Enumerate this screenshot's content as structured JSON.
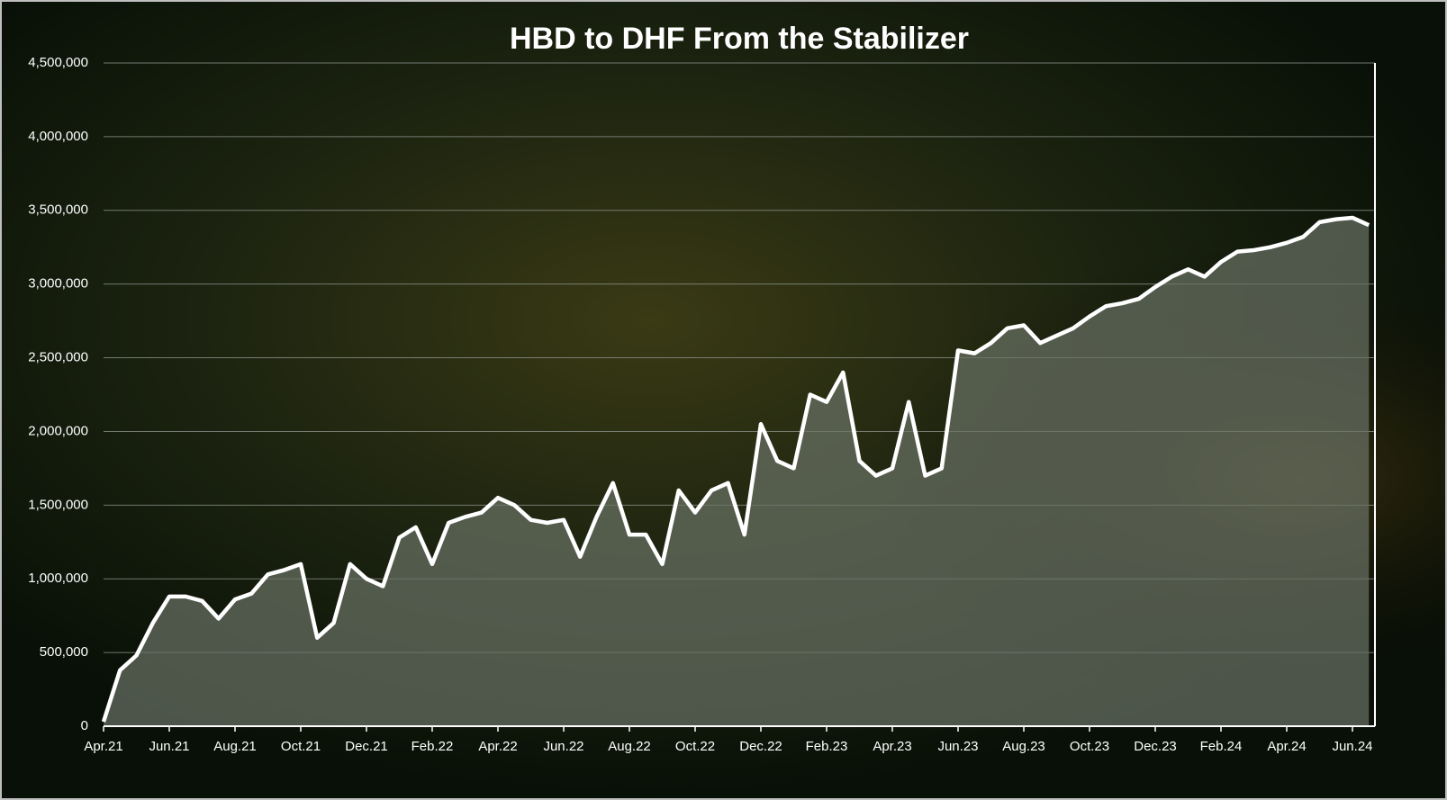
{
  "chart_data": {
    "type": "area",
    "title": "HBD to DHF From the Stabilizer",
    "categories": [
      "Apr.21",
      null,
      null,
      null,
      "Jun.21",
      null,
      null,
      null,
      "Aug.21",
      null,
      null,
      null,
      "Oct.21",
      null,
      null,
      null,
      "Dec.21",
      null,
      null,
      null,
      "Feb.22",
      null,
      null,
      null,
      "Apr.22",
      null,
      null,
      null,
      "Jun.22",
      null,
      null,
      null,
      "Aug.22",
      null,
      null,
      null,
      "Oct.22",
      null,
      null,
      null,
      "Dec.22",
      null,
      null,
      null,
      "Feb.23",
      null,
      null,
      null,
      "Apr.23",
      null,
      null,
      null,
      "Jun.23",
      null,
      null,
      null,
      "Aug.23",
      null,
      null,
      null,
      "Oct.23",
      null,
      null,
      null,
      "Dec.23",
      null,
      null,
      null,
      "Feb.24",
      null,
      null,
      null,
      "Apr.24",
      null,
      null,
      null,
      "Jun.24",
      null
    ],
    "values": [
      30000,
      380000,
      480000,
      700000,
      880000,
      880000,
      850000,
      730000,
      860000,
      900000,
      1030000,
      1060000,
      1100000,
      600000,
      700000,
      1100000,
      1000000,
      950000,
      1280000,
      1350000,
      1100000,
      1380000,
      1420000,
      1450000,
      1550000,
      1500000,
      1400000,
      1380000,
      1400000,
      1150000,
      1420000,
      1650000,
      1300000,
      1300000,
      1100000,
      1600000,
      1450000,
      1600000,
      1650000,
      1300000,
      2050000,
      1800000,
      1750000,
      2250000,
      2200000,
      2400000,
      1800000,
      1700000,
      1750000,
      2200000,
      1700000,
      1750000,
      2550000,
      2530000,
      2600000,
      2700000,
      2720000,
      2600000,
      2650000,
      2700000,
      2780000,
      2850000,
      2870000,
      2900000,
      2980000,
      3050000,
      3100000,
      3050000,
      3150000,
      3220000,
      3230000,
      3250000,
      3280000,
      3320000,
      3420000,
      3440000,
      3450000,
      3400000
    ],
    "line_color": "#ffffff",
    "fill_color": "#6b7467",
    "ylim": [
      0,
      4500000
    ],
    "yticks": [
      0,
      {
        "value": 500000,
        "label": "500,000"
      },
      {
        "value": 1000000,
        "label": "1,000,000"
      },
      {
        "value": 1500000,
        "label": "1,500,000"
      },
      {
        "value": 2000000,
        "label": "2,000,000"
      },
      {
        "value": 2500000,
        "label": "2,500,000"
      },
      {
        "value": 3000000,
        "label": "3,000,000"
      },
      {
        "value": 3500000,
        "label": "3,500,000"
      },
      {
        "value": 4000000,
        "label": "4,000,000"
      },
      {
        "value": 4500000,
        "label": "4,500,000"
      }
    ],
    "grid": true
  }
}
